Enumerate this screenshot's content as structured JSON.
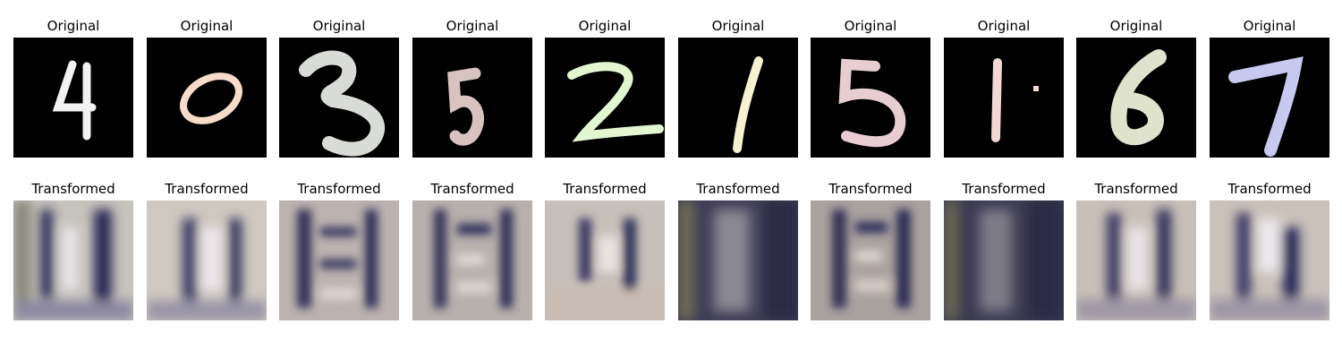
{
  "panels": [
    {
      "title": "Original",
      "digit": "4",
      "color": "#f2f2f2"
    },
    {
      "title": "Original",
      "digit": "0",
      "color": "#f8dcc9"
    },
    {
      "title": "Original",
      "digit": "3",
      "color": "#d8dbd6"
    },
    {
      "title": "Original",
      "digit": "5",
      "color": "#d9c3c0"
    },
    {
      "title": "Original",
      "digit": "2",
      "color": "#e2f7d0"
    },
    {
      "title": "Original",
      "digit": "1",
      "color": "#f6f2cf"
    },
    {
      "title": "Original",
      "digit": "5",
      "color": "#e7cdd1"
    },
    {
      "title": "Original",
      "digit": "1",
      "color": "#f3d8d6"
    },
    {
      "title": "Original",
      "digit": "6",
      "color": "#dfe3cd"
    },
    {
      "title": "Original",
      "digit": "7",
      "color": "#c7c9f0"
    }
  ],
  "transformed": [
    {
      "title": "Transformed",
      "tone": "light"
    },
    {
      "title": "Transformed",
      "tone": "light"
    },
    {
      "title": "Transformed",
      "tone": "light"
    },
    {
      "title": "Transformed",
      "tone": "light"
    },
    {
      "title": "Transformed",
      "tone": "light"
    },
    {
      "title": "Transformed",
      "tone": "dark"
    },
    {
      "title": "Transformed",
      "tone": "light"
    },
    {
      "title": "Transformed",
      "tone": "dark"
    },
    {
      "title": "Transformed",
      "tone": "light"
    },
    {
      "title": "Transformed",
      "tone": "light"
    }
  ]
}
